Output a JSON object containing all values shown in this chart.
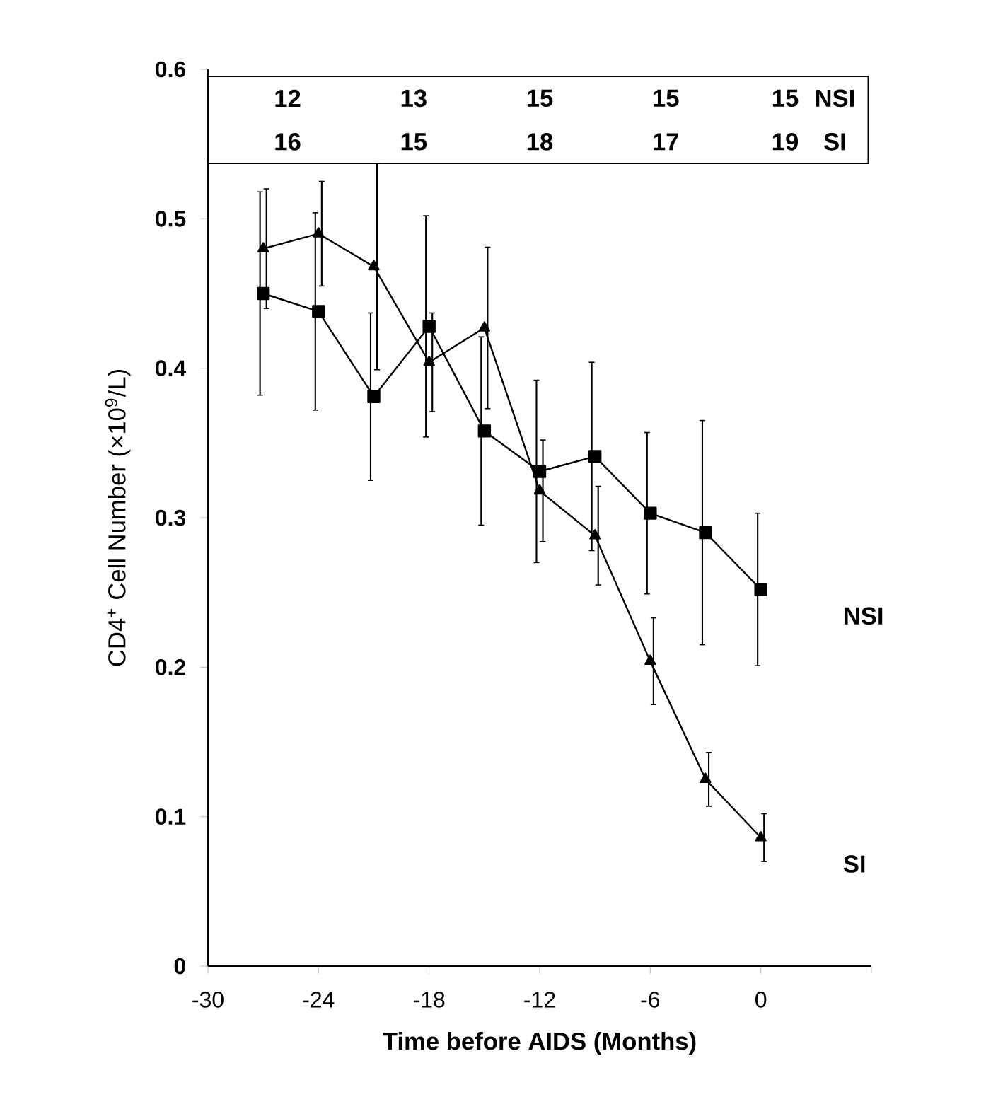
{
  "chart_data": {
    "type": "line",
    "xlabel": "Time before AIDS (Months)",
    "ylabel": "CD4$^{+}$ Cell Number (×10$^{9}$/L)",
    "x": [
      -27,
      -24,
      -21,
      -18,
      -15,
      -12,
      -9,
      -6,
      -3,
      0
    ],
    "series": [
      {
        "name": "NSI",
        "color": "#000000",
        "marker": "square",
        "values": [
          0.45,
          0.438,
          0.381,
          0.428,
          0.358,
          0.331,
          0.341,
          0.303,
          0.29,
          0.252
        ],
        "errors": [
          0.068,
          0.066,
          0.056,
          0.074,
          0.063,
          0.061,
          0.063,
          0.054,
          0.075,
          0.051
        ]
      },
      {
        "name": "SI",
        "color": "#000000",
        "marker": "triangle",
        "values": [
          0.48,
          0.49,
          0.468,
          0.404,
          0.427,
          0.318,
          0.288,
          0.204,
          0.125,
          0.086
        ],
        "errors": [
          0.04,
          0.035,
          0.069,
          0.033,
          0.054,
          0.034,
          0.033,
          0.029,
          0.018,
          0.016
        ]
      }
    ],
    "xlim": [
      -30,
      6
    ],
    "xticks": [
      -30,
      -24,
      -18,
      -12,
      -6,
      0,
      {
        "value": 6,
        "label": null
      }
    ],
    "ylim": [
      0,
      0.6
    ],
    "yticks": [
      0,
      0.1,
      0.2,
      0.3,
      0.4,
      0.5,
      0.6
    ],
    "grid": false,
    "legend": false,
    "line_style": "solid",
    "annotations": [
      "12",
      "13",
      "15",
      "15",
      "15",
      "NSI",
      "16",
      "15",
      "18",
      "17",
      "19",
      "SI"
    ]
  }
}
